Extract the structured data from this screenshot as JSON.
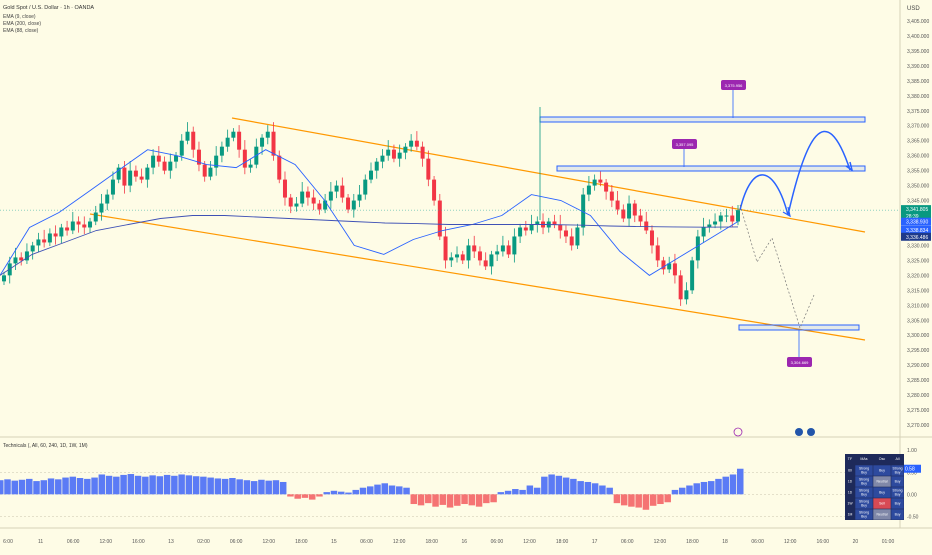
{
  "chart_title": "Gold Spot / U.S. Dollar · 1h · OANDA",
  "indicators": [
    "EMA (9, close)",
    "EMA (200, close)",
    "EMA (88, close)"
  ],
  "currency": "USD",
  "osc_title": "Technicals (, All, 60, 240, 1D, 1W, 1M)",
  "colors": {
    "up": "#089981",
    "down": "#f23645",
    "bg": "#fefce6",
    "channel": "#ff9800",
    "ema_fast": "#2962ff",
    "ema_slow": "#3f51b5",
    "zone": "#2962ff",
    "callout_bg": "#9c27b0",
    "osc_buy": "#5b7bf5",
    "osc_sell": "#f57373"
  },
  "price_axis": {
    "ticks": [
      "3,405.000",
      "3,400.000",
      "3,395.000",
      "3,390.000",
      "3,385.000",
      "3,380.000",
      "3,375.000",
      "3,370.000",
      "3,365.000",
      "3,360.000",
      "3,355.000",
      "3,350.000",
      "3,345.000",
      "3,340.000",
      "3,335.000",
      "3,330.000",
      "3,325.000",
      "3,320.000",
      "3,315.000",
      "3,310.000",
      "3,305.000",
      "3,300.000",
      "3,295.000",
      "3,290.000",
      "3,285.000",
      "3,280.000",
      "3,275.000",
      "3,270.000"
    ],
    "tick_values": [
      3405,
      3400,
      3395,
      3390,
      3385,
      3380,
      3375,
      3370,
      3365,
      3360,
      3355,
      3350,
      3345,
      3340,
      3335,
      3330,
      3325,
      3320,
      3315,
      3310,
      3305,
      3300,
      3295,
      3290,
      3285,
      3280,
      3275,
      3270
    ],
    "last_price": "3,341.805",
    "countdown": "28:39",
    "ema_labels": [
      {
        "value": "3,338.930",
        "num": 3338.93
      },
      {
        "value": "3,338.834",
        "num": 3336.2
      },
      {
        "value": "3,336.486",
        "num": 3333.9
      }
    ]
  },
  "time_axis": {
    "labels": [
      "6:00",
      "11",
      "06:00",
      "12:00",
      "16:00",
      "13",
      "02:00",
      "06:00",
      "12:00",
      "18:00",
      "15",
      "06:00",
      "12:00",
      "18:00",
      "16",
      "06:00",
      "12:00",
      "18:00",
      "17",
      "06:00",
      "12:00",
      "18:00",
      "18",
      "06:00",
      "12:00",
      "16:00",
      "20",
      "01:00"
    ]
  },
  "callouts": {
    "top_target": "3,375.956",
    "mid_target": "3,357.095",
    "low_target": "3,304.669"
  },
  "osc_axis": {
    "ticks": [
      "1.00",
      "0.50",
      "0.00",
      "-0.50"
    ],
    "tick_values": [
      1.0,
      0.5,
      0.0,
      -0.5
    ],
    "current": "0.58"
  },
  "tech_table": {
    "headers": [
      "TF",
      "MAs",
      "Osc",
      "All"
    ],
    "rows": [
      {
        "tf": "60",
        "mas": "Strong Buy",
        "osc": "Buy",
        "all": "Strong Buy"
      },
      {
        "tf": "1D",
        "mas": "Strong Buy",
        "osc": "Neutral",
        "all": "Buy"
      },
      {
        "tf": "1D",
        "mas": "Strong Buy",
        "osc": "Buy",
        "all": "Strong Buy"
      },
      {
        "tf": "1W",
        "mas": "Strong Buy",
        "osc": "Sell",
        "all": "Buy"
      },
      {
        "tf": "1M",
        "mas": "Strong Buy",
        "osc": "Neutral",
        "all": "Buy"
      }
    ]
  },
  "chart_data": {
    "type": "candlestick",
    "title": "Gold Spot / U.S. Dollar · 1h · OANDA",
    "ylim": [
      3266,
      3410
    ],
    "closes": [
      3320,
      3324,
      3326,
      3325,
      3328,
      3330,
      3332,
      3331,
      3334,
      3333,
      3336,
      3335,
      3338,
      3337,
      3336,
      3338,
      3341,
      3344,
      3347,
      3352,
      3356,
      3350,
      3355,
      3353,
      3352,
      3356,
      3360,
      3358,
      3355,
      3358,
      3360,
      3365,
      3368,
      3362,
      3357,
      3353,
      3356,
      3360,
      3363,
      3366,
      3368,
      3362,
      3356,
      3357,
      3363,
      3366,
      3368,
      3360,
      3352,
      3346,
      3343,
      3344,
      3348,
      3346,
      3344,
      3342,
      3345,
      3348,
      3350,
      3346,
      3342,
      3345,
      3347,
      3352,
      3355,
      3358,
      3360,
      3362,
      3359,
      3361,
      3363,
      3365,
      3363,
      3359,
      3352,
      3345,
      3333,
      3325,
      3326,
      3327,
      3325,
      3330,
      3328,
      3325,
      3323,
      3327,
      3328,
      3330,
      3327,
      3333,
      3336,
      3335,
      3337,
      3338,
      3336,
      3338,
      3337,
      3335,
      3333,
      3330,
      3336,
      3347,
      3350,
      3352,
      3351,
      3348,
      3345,
      3342,
      3339,
      3344,
      3340,
      3338,
      3335,
      3330,
      3325,
      3322,
      3324,
      3320,
      3312,
      3315,
      3325,
      3333,
      3336,
      3337,
      3338,
      3340,
      3340,
      3338,
      3341.8
    ],
    "ema_values": [
      3320,
      3336,
      3341,
      3348,
      3355,
      3362,
      3360,
      3357,
      3356,
      3362,
      3357,
      3345,
      3330,
      3327,
      3332,
      3335,
      3337,
      3340,
      3347,
      3345,
      3340,
      3328,
      3320,
      3326,
      3332,
      3338
    ],
    "long_ema_values": [
      3320,
      3327,
      3331,
      3335,
      3337,
      3339,
      3340,
      3340,
      3339.5,
      3339,
      3338.5,
      3338,
      3337.5,
      3337.3,
      3337,
      3337,
      3337,
      3337,
      3336.8,
      3336.5,
      3336.3,
      3336.2,
      3336.1,
      3336.2
    ],
    "osc_values": [
      0.32,
      0.34,
      0.31,
      0.33,
      0.35,
      0.3,
      0.32,
      0.36,
      0.34,
      0.38,
      0.4,
      0.37,
      0.35,
      0.38,
      0.45,
      0.42,
      0.4,
      0.44,
      0.46,
      0.42,
      0.4,
      0.43,
      0.41,
      0.44,
      0.42,
      0.45,
      0.43,
      0.41,
      0.4,
      0.38,
      0.36,
      0.35,
      0.37,
      0.34,
      0.32,
      0.3,
      0.33,
      0.31,
      0.32,
      0.28,
      -0.05,
      -0.1,
      -0.08,
      -0.12,
      -0.05,
      0.05,
      0.08,
      0.06,
      0.04,
      0.1,
      0.15,
      0.18,
      0.22,
      0.25,
      0.2,
      0.18,
      0.15,
      -0.22,
      -0.25,
      -0.2,
      -0.28,
      -0.24,
      -0.3,
      -0.26,
      -0.22,
      -0.25,
      -0.28,
      -0.2,
      -0.18,
      0.05,
      0.08,
      0.12,
      0.1,
      0.2,
      0.15,
      0.4,
      0.45,
      0.42,
      0.38,
      0.35,
      0.3,
      0.28,
      0.25,
      0.2,
      0.15,
      -0.2,
      -0.25,
      -0.28,
      -0.3,
      -0.35,
      -0.26,
      -0.22,
      -0.18,
      0.1,
      0.15,
      0.2,
      0.25,
      0.28,
      0.3,
      0.35,
      0.4,
      0.45,
      0.58
    ]
  }
}
